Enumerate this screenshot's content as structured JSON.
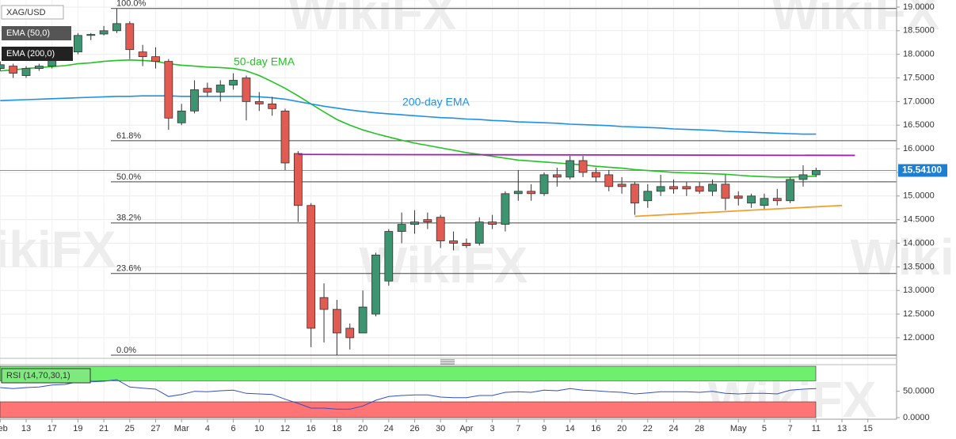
{
  "chart_data": {
    "type": "candlestick",
    "title": "XAG/USD",
    "watermark": "WikiFX",
    "up_color": "#3d9470",
    "down_color": "#e25b52",
    "categories": [
      "Feb",
      null,
      "13",
      null,
      "17",
      null,
      "19",
      null,
      "21",
      null,
      "25",
      null,
      "27",
      null,
      "Mar",
      null,
      "4",
      null,
      "6",
      null,
      "10",
      null,
      "12",
      null,
      "16",
      null,
      "18",
      null,
      "20",
      null,
      "24",
      null,
      "26",
      null,
      "30",
      null,
      "Apr",
      null,
      "3",
      null,
      "7",
      null,
      "9",
      null,
      "14",
      null,
      "16",
      null,
      "20",
      null,
      "22",
      null,
      "24",
      null,
      "28",
      null,
      null,
      "May",
      null,
      "5",
      null,
      "7",
      null,
      "11",
      null,
      "13",
      null,
      "15"
    ],
    "open": [
      17.7,
      17.75,
      17.55,
      17.7,
      17.75,
      17.95,
      18.05,
      18.4,
      18.43,
      18.5,
      18.65,
      18.05,
      17.95,
      17.85,
      16.55,
      16.8,
      17.28,
      17.2,
      17.35,
      17.5,
      17.0,
      16.95,
      16.8,
      15.9,
      14.8,
      12.85,
      12.6,
      12.2,
      12.1,
      12.5,
      13.2,
      14.25,
      14.4,
      14.5,
      14.55,
      14.05,
      14.0,
      14.0,
      14.45,
      14.4,
      15.05,
      15.1,
      15.05,
      15.45,
      15.4,
      15.75,
      15.5,
      15.45,
      15.25,
      15.25,
      14.9,
      15.1,
      15.2,
      15.2,
      15.2,
      15.1,
      15.25,
      15.0,
      14.85,
      14.8,
      14.95,
      14.9,
      15.35,
      15.45,
      null,
      null,
      null,
      null
    ],
    "high": [
      17.85,
      17.8,
      17.75,
      17.8,
      18.0,
      18.1,
      18.45,
      18.45,
      18.6,
      18.97,
      18.7,
      18.2,
      18.15,
      17.9,
      16.95,
      17.45,
      17.4,
      17.45,
      17.6,
      17.55,
      17.2,
      17.1,
      16.85,
      15.95,
      14.85,
      13.15,
      12.8,
      12.3,
      13.0,
      13.8,
      14.3,
      14.65,
      14.7,
      14.65,
      14.6,
      14.25,
      14.1,
      14.55,
      14.6,
      15.1,
      15.55,
      15.25,
      15.5,
      15.6,
      15.85,
      15.85,
      15.6,
      15.55,
      15.4,
      15.3,
      15.25,
      15.45,
      15.35,
      15.3,
      15.3,
      15.35,
      15.45,
      15.1,
      15.05,
      15.05,
      15.15,
      15.4,
      15.65,
      15.6,
      null,
      null,
      null,
      null
    ],
    "low": [
      17.65,
      17.5,
      17.5,
      17.65,
      17.7,
      17.9,
      18.0,
      18.3,
      18.4,
      18.45,
      17.9,
      17.75,
      17.7,
      16.4,
      16.5,
      16.75,
      17.1,
      17.0,
      17.25,
      16.6,
      16.8,
      16.7,
      15.55,
      14.45,
      11.8,
      11.9,
      11.63,
      11.75,
      12.1,
      12.45,
      13.1,
      14.0,
      14.2,
      14.3,
      13.9,
      13.85,
      13.9,
      13.95,
      14.3,
      14.25,
      14.9,
      14.9,
      15.0,
      15.2,
      15.35,
      15.4,
      15.3,
      15.1,
      15.05,
      14.6,
      14.75,
      15.0,
      15.05,
      15.0,
      15.05,
      15.0,
      14.7,
      14.8,
      14.75,
      14.7,
      14.8,
      14.85,
      15.2,
      15.4,
      null,
      null,
      null,
      null
    ],
    "close": [
      17.78,
      17.6,
      17.7,
      17.75,
      17.95,
      18.05,
      18.4,
      18.42,
      18.5,
      18.65,
      18.1,
      17.95,
      17.85,
      16.65,
      16.8,
      17.25,
      17.2,
      17.35,
      17.45,
      17.0,
      16.95,
      16.85,
      15.7,
      14.8,
      12.2,
      12.6,
      12.1,
      12.0,
      12.65,
      13.75,
      14.25,
      14.4,
      14.45,
      14.45,
      14.05,
      14.0,
      13.95,
      14.45,
      14.4,
      15.05,
      15.1,
      15.05,
      15.45,
      15.4,
      15.75,
      15.5,
      15.4,
      15.2,
      15.2,
      14.85,
      15.1,
      15.2,
      15.15,
      15.15,
      15.1,
      15.25,
      14.95,
      14.95,
      15.0,
      14.95,
      14.9,
      15.35,
      15.45,
      15.54,
      null,
      null,
      null,
      null
    ],
    "series": [
      {
        "name": "EMA (50,0)",
        "color": "#22c322",
        "values": [
          17.65,
          17.67,
          17.7,
          17.72,
          17.74,
          17.76,
          17.8,
          17.82,
          17.85,
          17.87,
          17.88,
          17.87,
          17.85,
          17.8,
          17.77,
          17.75,
          17.73,
          17.72,
          17.7,
          17.65,
          17.55,
          17.42,
          17.28,
          17.12,
          16.95,
          16.78,
          16.62,
          16.5,
          16.4,
          16.32,
          16.25,
          16.18,
          16.12,
          16.07,
          16.02,
          15.97,
          15.92,
          15.88,
          15.84,
          15.8,
          15.76,
          15.74,
          15.72,
          15.7,
          15.68,
          15.66,
          15.63,
          15.61,
          15.59,
          15.56,
          15.54,
          15.52,
          15.5,
          15.49,
          15.48,
          15.47,
          15.46,
          15.44,
          15.42,
          15.41,
          15.4,
          15.4,
          15.41,
          15.42,
          null,
          null,
          null,
          null
        ]
      },
      {
        "name": "EMA (200,0)",
        "color": "#1e90e6",
        "values": [
          17.02,
          17.03,
          17.04,
          17.05,
          17.06,
          17.07,
          17.08,
          17.09,
          17.1,
          17.11,
          17.11,
          17.12,
          17.12,
          17.12,
          17.11,
          17.11,
          17.11,
          17.11,
          17.11,
          17.11,
          17.1,
          17.08,
          17.05,
          17.0,
          16.95,
          16.9,
          16.86,
          16.82,
          16.79,
          16.76,
          16.74,
          16.72,
          16.7,
          16.68,
          16.66,
          16.65,
          16.63,
          16.62,
          16.6,
          16.59,
          16.57,
          16.56,
          16.55,
          16.54,
          16.52,
          16.51,
          16.5,
          16.49,
          16.47,
          16.46,
          16.45,
          16.44,
          16.42,
          16.41,
          16.4,
          16.39,
          16.37,
          16.36,
          16.35,
          16.34,
          16.33,
          16.32,
          16.31,
          16.31,
          null,
          null,
          null,
          null
        ]
      }
    ],
    "annotations": [
      {
        "text": "50-day EMA",
        "color": "#22c322"
      },
      {
        "text": "200-day EMA",
        "color": "#1e90e6"
      }
    ],
    "fibonacci": [
      {
        "label": "100.0%",
        "value": 18.97
      },
      {
        "label": "61.8%",
        "value": 16.17
      },
      {
        "label": "50.0%",
        "value": 15.3
      },
      {
        "label": "38.2%",
        "value": 14.43
      },
      {
        "label": "23.6%",
        "value": 13.36
      },
      {
        "label": "0.0%",
        "value": 11.63
      }
    ],
    "trendlines": [
      {
        "color": "#a020b0",
        "x": [
          23,
          66
        ],
        "y": [
          15.88,
          15.86
        ]
      },
      {
        "color": "#f0a030",
        "x": [
          49,
          65
        ],
        "y": [
          14.57,
          14.8
        ]
      }
    ],
    "last_price": {
      "value": 15.541,
      "label": "15.54100",
      "color": "#1e7fd0"
    },
    "ylim": [
      11.58,
      19.15
    ],
    "yticks": [
      {
        "value": 19,
        "label": "19.0000"
      },
      {
        "value": 18.5,
        "label": "18.5000"
      },
      {
        "value": 18,
        "label": "18.0000"
      },
      {
        "value": 17.5,
        "label": "17.5000"
      },
      {
        "value": 17,
        "label": "17.0000"
      },
      {
        "value": 16.5,
        "label": "16.5000"
      },
      {
        "value": 16,
        "label": "16.0000"
      },
      {
        "value": 15.5,
        "label": "15.5000"
      },
      {
        "value": 15,
        "label": "15.0000"
      },
      {
        "value": 14.5,
        "label": "14.5000"
      },
      {
        "value": 14,
        "label": "14.0000"
      },
      {
        "value": 13.5,
        "label": "13.5000"
      },
      {
        "value": 13,
        "label": "13.0000"
      },
      {
        "value": 12.5,
        "label": "12.5000"
      },
      {
        "value": 12,
        "label": "12.0000"
      }
    ],
    "grid": true,
    "indicator": {
      "name": "RSI (14,70,30,1)",
      "color": "#3050c8",
      "levels": [
        70,
        30
      ],
      "level_colors": [
        "#6ef06e",
        "#ff7474"
      ],
      "ylim": [
        0,
        99
      ],
      "yticks": [
        {
          "value": 50,
          "label": "50.0000"
        },
        {
          "value": 0,
          "label": "0.0000"
        }
      ],
      "values": [
        57,
        55,
        57,
        58,
        62,
        63,
        68,
        68,
        69,
        72,
        58,
        56,
        54,
        40,
        44,
        50,
        49,
        51,
        52,
        46,
        45,
        44,
        35,
        27,
        18,
        18,
        16,
        16,
        22,
        33,
        40,
        42,
        43,
        43,
        39,
        38,
        38,
        42,
        42,
        48,
        49,
        48,
        52,
        51,
        55,
        52,
        51,
        49,
        48,
        45,
        47,
        49,
        49,
        49,
        48,
        50,
        46,
        45,
        46,
        46,
        45,
        52,
        54,
        55,
        null,
        null,
        null,
        null
      ]
    }
  }
}
